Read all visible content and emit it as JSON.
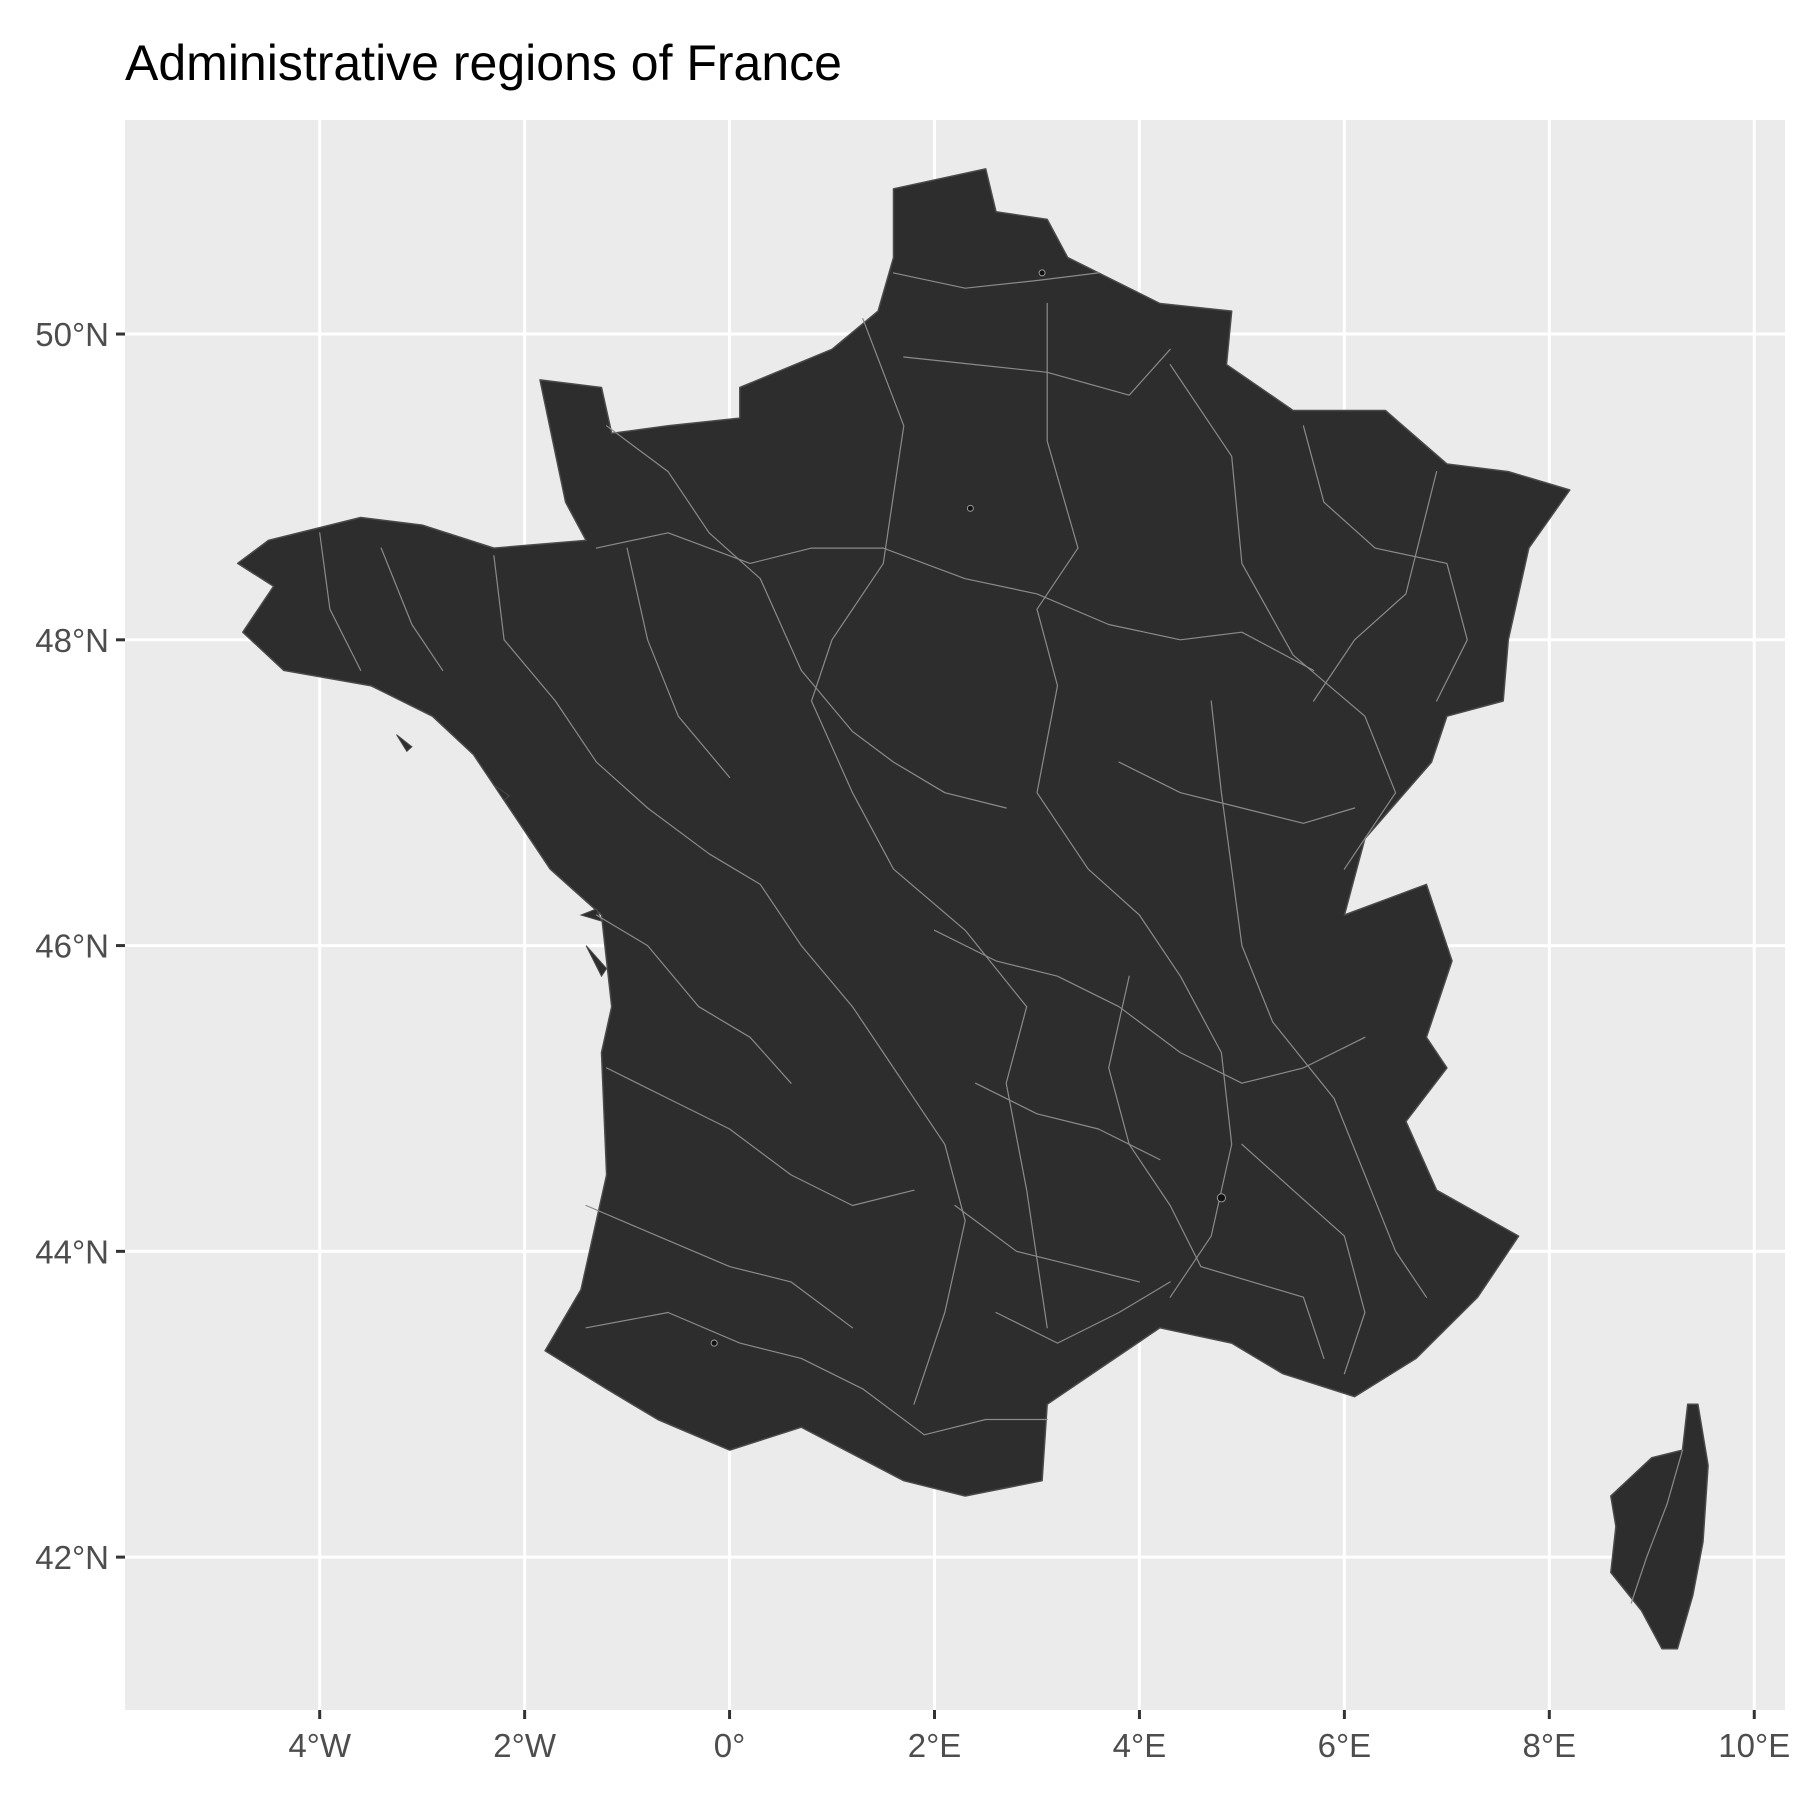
{
  "title": "Administrative regions of France",
  "colors": {
    "panel_background": "#ebebeb",
    "grid_line": "#ffffff",
    "land_fill": "#2d2d2d",
    "boundary_line": "#8a8a8a",
    "tick_text": "#4d4d4d",
    "title_text": "#000000"
  },
  "map": {
    "projection": "equirectangular",
    "lon_range": [
      -5.9,
      10.3
    ],
    "lat_range": [
      41.0,
      51.4
    ],
    "grid": true,
    "x_ticks": [
      {
        "value": -4,
        "label": "4°W"
      },
      {
        "value": -2,
        "label": "2°W"
      },
      {
        "value": 0,
        "label": "0°"
      },
      {
        "value": 2,
        "label": "2°E"
      },
      {
        "value": 4,
        "label": "4°E"
      },
      {
        "value": 6,
        "label": "6°E"
      },
      {
        "value": 8,
        "label": "8°E"
      },
      {
        "value": 10,
        "label": "10°E"
      }
    ],
    "y_ticks": [
      {
        "value": 42,
        "label": "42°N"
      },
      {
        "value": 44,
        "label": "44°N"
      },
      {
        "value": 46,
        "label": "46°N"
      },
      {
        "value": 48,
        "label": "48°N"
      },
      {
        "value": 50,
        "label": "50°N"
      }
    ],
    "mainland_outline": [
      [
        1.6,
        50.95
      ],
      [
        2.5,
        51.08
      ],
      [
        2.6,
        50.8
      ],
      [
        3.1,
        50.75
      ],
      [
        3.3,
        50.5
      ],
      [
        4.2,
        50.2
      ],
      [
        4.9,
        50.15
      ],
      [
        4.85,
        49.8
      ],
      [
        5.5,
        49.5
      ],
      [
        6.4,
        49.5
      ],
      [
        7.0,
        49.15
      ],
      [
        7.6,
        49.1
      ],
      [
        8.2,
        48.98
      ],
      [
        7.8,
        48.6
      ],
      [
        7.6,
        48.0
      ],
      [
        7.55,
        47.6
      ],
      [
        7.0,
        47.5
      ],
      [
        6.85,
        47.2
      ],
      [
        6.2,
        46.7
      ],
      [
        6.0,
        46.2
      ],
      [
        6.8,
        46.4
      ],
      [
        7.05,
        45.9
      ],
      [
        6.8,
        45.4
      ],
      [
        7.0,
        45.2
      ],
      [
        6.6,
        44.85
      ],
      [
        6.9,
        44.4
      ],
      [
        7.7,
        44.1
      ],
      [
        7.3,
        43.7
      ],
      [
        6.7,
        43.3
      ],
      [
        6.1,
        43.05
      ],
      [
        5.4,
        43.2
      ],
      [
        4.9,
        43.4
      ],
      [
        4.2,
        43.5
      ],
      [
        3.1,
        43.0
      ],
      [
        3.05,
        42.5
      ],
      [
        2.3,
        42.4
      ],
      [
        1.7,
        42.5
      ],
      [
        0.7,
        42.85
      ],
      [
        0.0,
        42.7
      ],
      [
        -0.7,
        42.9
      ],
      [
        -1.2,
        43.1
      ],
      [
        -1.8,
        43.35
      ],
      [
        -1.45,
        43.75
      ],
      [
        -1.2,
        44.5
      ],
      [
        -1.25,
        45.3
      ],
      [
        -1.15,
        45.6
      ],
      [
        -1.25,
        46.2
      ],
      [
        -1.75,
        46.5
      ],
      [
        -2.15,
        46.9
      ],
      [
        -2.5,
        47.25
      ],
      [
        -2.9,
        47.5
      ],
      [
        -3.5,
        47.7
      ],
      [
        -4.35,
        47.8
      ],
      [
        -4.75,
        48.05
      ],
      [
        -4.45,
        48.35
      ],
      [
        -4.8,
        48.5
      ],
      [
        -4.5,
        48.65
      ],
      [
        -3.6,
        48.8
      ],
      [
        -3.0,
        48.75
      ],
      [
        -2.3,
        48.6
      ],
      [
        -1.4,
        48.65
      ],
      [
        -1.6,
        48.9
      ],
      [
        -1.85,
        49.7
      ],
      [
        -1.25,
        49.65
      ],
      [
        -1.15,
        49.35
      ],
      [
        -0.6,
        49.4
      ],
      [
        0.1,
        49.45
      ],
      [
        0.1,
        49.65
      ],
      [
        1.0,
        49.9
      ],
      [
        1.45,
        50.15
      ],
      [
        1.6,
        50.5
      ],
      [
        1.6,
        50.95
      ]
    ],
    "corsica_outline": [
      [
        9.45,
        43.0
      ],
      [
        9.55,
        42.6
      ],
      [
        9.5,
        42.1
      ],
      [
        9.4,
        41.75
      ],
      [
        9.25,
        41.4
      ],
      [
        9.1,
        41.4
      ],
      [
        8.9,
        41.65
      ],
      [
        8.6,
        41.9
      ],
      [
        8.65,
        42.2
      ],
      [
        8.6,
        42.4
      ],
      [
        9.0,
        42.65
      ],
      [
        9.3,
        42.7
      ],
      [
        9.35,
        43.0
      ],
      [
        9.45,
        43.0
      ]
    ],
    "internal_boundaries": [
      [
        [
          1.6,
          50.4
        ],
        [
          2.3,
          50.3
        ],
        [
          3.0,
          50.35
        ],
        [
          3.6,
          50.4
        ]
      ],
      [
        [
          1.7,
          49.85
        ],
        [
          2.4,
          49.8
        ],
        [
          3.1,
          49.75
        ],
        [
          3.9,
          49.6
        ],
        [
          4.3,
          49.9
        ]
      ],
      [
        [
          1.3,
          50.1
        ],
        [
          1.7,
          49.4
        ],
        [
          1.6,
          48.95
        ],
        [
          1.5,
          48.5
        ],
        [
          1.0,
          48.0
        ],
        [
          0.8,
          47.6
        ],
        [
          1.2,
          47.0
        ],
        [
          1.6,
          46.5
        ],
        [
          2.3,
          46.1
        ],
        [
          2.9,
          45.6
        ],
        [
          2.7,
          45.1
        ],
        [
          2.9,
          44.4
        ],
        [
          3.1,
          43.5
        ]
      ],
      [
        [
          3.1,
          50.2
        ],
        [
          3.1,
          49.3
        ],
        [
          3.4,
          48.6
        ],
        [
          3.0,
          48.2
        ],
        [
          3.2,
          47.7
        ],
        [
          3.0,
          47.0
        ],
        [
          3.5,
          46.5
        ],
        [
          4.0,
          46.2
        ],
        [
          4.4,
          45.8
        ],
        [
          4.8,
          45.3
        ],
        [
          4.9,
          44.7
        ],
        [
          4.7,
          44.1
        ],
        [
          4.3,
          43.7
        ]
      ],
      [
        [
          4.3,
          49.8
        ],
        [
          4.9,
          49.2
        ],
        [
          5.0,
          48.5
        ],
        [
          5.5,
          47.9
        ],
        [
          6.2,
          47.5
        ],
        [
          6.5,
          47.0
        ],
        [
          6.0,
          46.5
        ]
      ],
      [
        [
          5.6,
          49.4
        ],
        [
          5.8,
          48.9
        ],
        [
          6.3,
          48.6
        ],
        [
          7.0,
          48.5
        ],
        [
          7.2,
          48.0
        ],
        [
          6.9,
          47.6
        ]
      ],
      [
        [
          6.9,
          49.1
        ],
        [
          6.6,
          48.3
        ],
        [
          6.1,
          48.0
        ],
        [
          5.7,
          47.6
        ]
      ],
      [
        [
          -1.3,
          48.6
        ],
        [
          -0.6,
          48.7
        ],
        [
          0.2,
          48.5
        ],
        [
          0.8,
          48.6
        ],
        [
          1.5,
          48.6
        ],
        [
          2.3,
          48.4
        ],
        [
          3.0,
          48.3
        ],
        [
          3.7,
          48.1
        ],
        [
          4.4,
          48.0
        ],
        [
          5.0,
          48.05
        ],
        [
          5.7,
          47.8
        ]
      ],
      [
        [
          -2.3,
          48.55
        ],
        [
          -2.2,
          48.0
        ],
        [
          -1.7,
          47.6
        ],
        [
          -1.3,
          47.2
        ],
        [
          -0.8,
          46.9
        ],
        [
          -0.2,
          46.6
        ],
        [
          0.3,
          46.4
        ],
        [
          0.7,
          46.0
        ],
        [
          1.2,
          45.6
        ],
        [
          1.7,
          45.1
        ],
        [
          2.1,
          44.7
        ],
        [
          2.3,
          44.2
        ],
        [
          2.1,
          43.6
        ],
        [
          1.8,
          43.0
        ]
      ],
      [
        [
          -3.4,
          48.6
        ],
        [
          -3.1,
          48.1
        ],
        [
          -2.8,
          47.8
        ]
      ],
      [
        [
          -4.0,
          48.7
        ],
        [
          -3.9,
          48.2
        ],
        [
          -3.6,
          47.8
        ]
      ],
      [
        [
          -1.2,
          49.4
        ],
        [
          -0.6,
          49.1
        ],
        [
          -0.2,
          48.7
        ],
        [
          0.3,
          48.4
        ]
      ],
      [
        [
          -1.0,
          48.6
        ],
        [
          -0.8,
          48.0
        ],
        [
          -0.5,
          47.5
        ],
        [
          0.0,
          47.1
        ]
      ],
      [
        [
          0.3,
          48.4
        ],
        [
          0.7,
          47.8
        ],
        [
          1.2,
          47.4
        ],
        [
          1.6,
          47.2
        ],
        [
          2.1,
          47.0
        ],
        [
          2.7,
          46.9
        ]
      ],
      [
        [
          -1.3,
          46.2
        ],
        [
          -0.8,
          46.0
        ],
        [
          -0.3,
          45.6
        ],
        [
          0.2,
          45.4
        ],
        [
          0.6,
          45.1
        ]
      ],
      [
        [
          -1.2,
          45.2
        ],
        [
          -0.6,
          45.0
        ],
        [
          0.0,
          44.8
        ],
        [
          0.6,
          44.5
        ],
        [
          1.2,
          44.3
        ],
        [
          1.8,
          44.4
        ]
      ],
      [
        [
          -1.4,
          44.3
        ],
        [
          -0.7,
          44.1
        ],
        [
          0.0,
          43.9
        ],
        [
          0.6,
          43.8
        ],
        [
          1.2,
          43.5
        ]
      ],
      [
        [
          -1.4,
          43.5
        ],
        [
          -0.6,
          43.6
        ],
        [
          0.1,
          43.4
        ],
        [
          0.7,
          43.3
        ],
        [
          1.3,
          43.1
        ],
        [
          1.9,
          42.8
        ]
      ],
      [
        [
          2.0,
          46.1
        ],
        [
          2.6,
          45.9
        ],
        [
          3.2,
          45.8
        ],
        [
          3.8,
          45.6
        ],
        [
          4.4,
          45.3
        ],
        [
          5.0,
          45.1
        ],
        [
          5.6,
          45.2
        ],
        [
          6.2,
          45.4
        ]
      ],
      [
        [
          2.4,
          45.1
        ],
        [
          3.0,
          44.9
        ],
        [
          3.6,
          44.8
        ],
        [
          4.2,
          44.6
        ]
      ],
      [
        [
          2.2,
          44.3
        ],
        [
          2.8,
          44.0
        ],
        [
          3.4,
          43.9
        ],
        [
          4.0,
          43.8
        ]
      ],
      [
        [
          3.8,
          47.2
        ],
        [
          4.4,
          47.0
        ],
        [
          5.0,
          46.9
        ],
        [
          5.6,
          46.8
        ],
        [
          6.1,
          46.9
        ]
      ],
      [
        [
          4.7,
          47.6
        ],
        [
          4.8,
          47.0
        ],
        [
          4.9,
          46.5
        ],
        [
          5.0,
          46.0
        ],
        [
          5.3,
          45.5
        ],
        [
          5.9,
          45.0
        ],
        [
          6.2,
          44.5
        ],
        [
          6.5,
          44.0
        ],
        [
          6.8,
          43.7
        ]
      ],
      [
        [
          5.0,
          44.7
        ],
        [
          5.5,
          44.4
        ],
        [
          6.0,
          44.1
        ],
        [
          6.2,
          43.6
        ],
        [
          6.0,
          43.2
        ]
      ],
      [
        [
          4.6,
          43.9
        ],
        [
          5.1,
          43.8
        ],
        [
          5.6,
          43.7
        ],
        [
          5.8,
          43.3
        ]
      ],
      [
        [
          3.9,
          45.8
        ],
        [
          3.7,
          45.2
        ],
        [
          3.9,
          44.7
        ],
        [
          4.3,
          44.3
        ],
        [
          4.6,
          43.9
        ]
      ],
      [
        [
          2.6,
          43.6
        ],
        [
          3.2,
          43.4
        ],
        [
          3.8,
          43.6
        ],
        [
          4.3,
          43.8
        ]
      ],
      [
        [
          1.9,
          42.8
        ],
        [
          2.5,
          42.9
        ],
        [
          3.1,
          42.9
        ]
      ],
      [
        [
          9.3,
          42.7
        ],
        [
          9.15,
          42.35
        ],
        [
          8.95,
          42.0
        ],
        [
          8.8,
          41.7
        ]
      ]
    ],
    "small_features": [
      {
        "lon": 4.8,
        "lat": 44.35,
        "r": 0.08
      },
      {
        "lon": -0.15,
        "lat": 43.4,
        "r": 0.06
      },
      {
        "lon": 3.05,
        "lat": 50.4,
        "r": 0.04
      },
      {
        "lon": 2.35,
        "lat": 48.86,
        "r": 0.05
      }
    ],
    "islands": [
      [
        [
          -1.45,
          46.2
        ],
        [
          -1.25,
          46.16
        ],
        [
          -1.3,
          46.24
        ],
        [
          -1.45,
          46.2
        ]
      ],
      [
        [
          -1.4,
          46.0
        ],
        [
          -1.2,
          45.85
        ],
        [
          -1.25,
          45.8
        ],
        [
          -1.4,
          46.0
        ]
      ],
      [
        [
          -3.25,
          47.38
        ],
        [
          -3.1,
          47.3
        ],
        [
          -3.15,
          47.27
        ],
        [
          -3.25,
          47.38
        ]
      ],
      [
        [
          -2.3,
          47.05
        ],
        [
          -2.15,
          46.98
        ],
        [
          -2.2,
          46.95
        ],
        [
          -2.3,
          47.05
        ]
      ]
    ]
  }
}
